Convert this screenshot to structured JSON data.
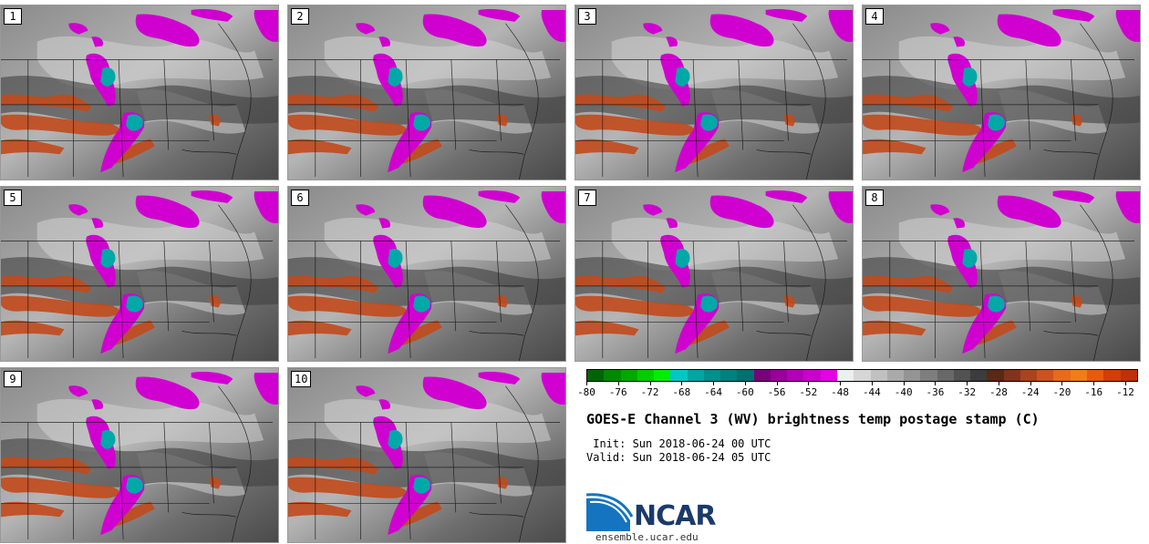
{
  "figure": {
    "title": "GOES-E Channel 3 (WV) brightness temp postage stamp (C)",
    "init_text": " Init: Sun 2018-06-24 00 UTC",
    "valid_text": "Valid: Sun 2018-06-24 05 UTC",
    "logo_text": "NCAR",
    "url_text": "ensemble.ucar.edu"
  },
  "panels": [
    {
      "label": "1"
    },
    {
      "label": "2"
    },
    {
      "label": "3"
    },
    {
      "label": "4"
    },
    {
      "label": "5"
    },
    {
      "label": "6"
    },
    {
      "label": "7"
    },
    {
      "label": "8"
    },
    {
      "label": "9"
    },
    {
      "label": "10"
    }
  ],
  "colorbar": {
    "tick_labels": [
      "-80",
      "-76",
      "-72",
      "-68",
      "-64",
      "-60",
      "-56",
      "-52",
      "-48",
      "-44",
      "-40",
      "-36",
      "-32",
      "-28",
      "-24",
      "-20",
      "-16",
      "-12"
    ],
    "colors": [
      "#006400",
      "#008800",
      "#00a800",
      "#00cc00",
      "#00ee00",
      "#00c8c8",
      "#00a6a6",
      "#008e8e",
      "#007f7f",
      "#007070",
      "#7a007a",
      "#990099",
      "#b400b4",
      "#cc00cc",
      "#e600e6",
      "#eeeeee",
      "#d6d6d6",
      "#c0c0c0",
      "#aaaaaa",
      "#949494",
      "#7e7e7e",
      "#686868",
      "#525252",
      "#3c3c3c",
      "#5a2814",
      "#82341a",
      "#a84420",
      "#cc5222",
      "#e86a1e",
      "#f07e18",
      "#e85a10",
      "#d43c0a",
      "#c0300a"
    ]
  },
  "colors": {
    "dry_orange": "#c24a1c",
    "cold_magenta": "#d000d0",
    "deep_cyan": "#00a8a8",
    "map_gray": "#6a6a6a"
  }
}
